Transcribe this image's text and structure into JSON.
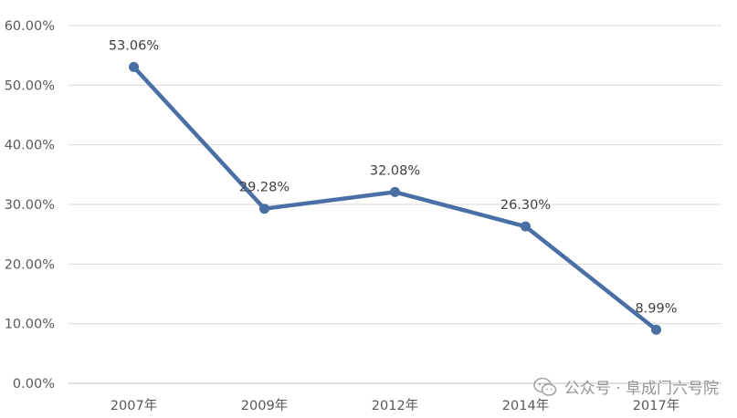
{
  "chart_data": {
    "type": "line",
    "title": "",
    "xlabel": "",
    "ylabel": "",
    "categories": [
      "2007年",
      "2009年",
      "2012年",
      "2014年",
      "2017年"
    ],
    "series": [
      {
        "values": [
          53.06,
          29.28,
          32.08,
          26.3,
          8.99
        ],
        "labels": [
          "53.06%",
          "29.28%",
          "32.08%",
          "26.30%",
          "8.99%"
        ],
        "color": "#4A6FA5"
      }
    ],
    "ylim": [
      0,
      60
    ],
    "yticks": [
      0,
      10,
      20,
      30,
      40,
      50,
      60
    ],
    "ytick_labels": [
      "0.00%",
      "10.00%",
      "20.00%",
      "30.00%",
      "40.00%",
      "50.00%",
      "60.00%"
    ],
    "grid": true,
    "legend": false,
    "colors": {
      "line": "#4A6FA5",
      "grid": "#d9d9d9",
      "axis": "#bfbfbf",
      "text": "#595959"
    }
  },
  "watermark": {
    "icon": "wechat-icon",
    "text": "公众号 · 阜成门六号院"
  }
}
